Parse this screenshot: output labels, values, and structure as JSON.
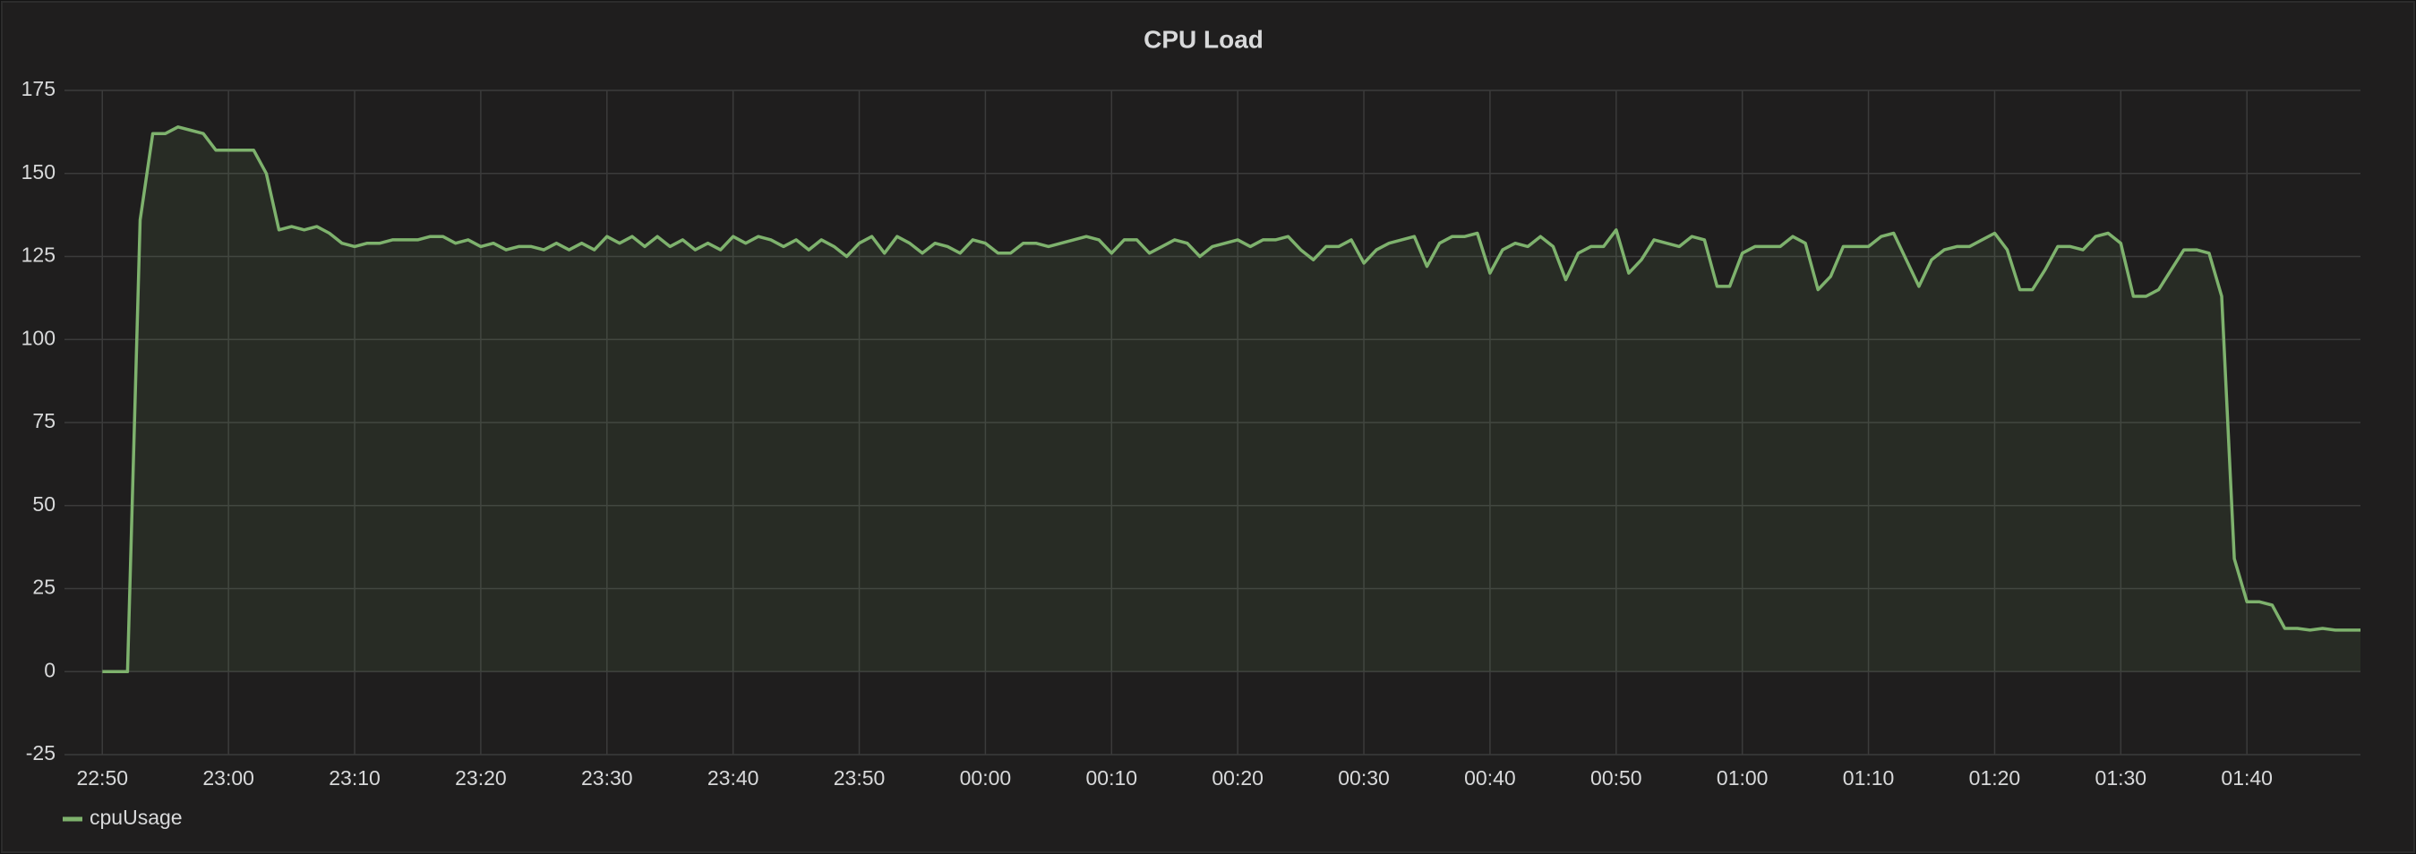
{
  "chart_data": {
    "type": "line",
    "title": "CPU Load",
    "x": [
      "22:50",
      "22:51",
      "22:52",
      "22:53",
      "22:54",
      "22:55",
      "22:56",
      "22:57",
      "22:58",
      "22:59",
      "23:00",
      "23:01",
      "23:02",
      "23:03",
      "23:04",
      "23:05",
      "23:06",
      "23:07",
      "23:08",
      "23:09",
      "23:10",
      "23:11",
      "23:12",
      "23:13",
      "23:14",
      "23:15",
      "23:16",
      "23:17",
      "23:18",
      "23:19",
      "23:20",
      "23:21",
      "23:22",
      "23:23",
      "23:24",
      "23:25",
      "23:26",
      "23:27",
      "23:28",
      "23:29",
      "23:30",
      "23:31",
      "23:32",
      "23:33",
      "23:34",
      "23:35",
      "23:36",
      "23:37",
      "23:38",
      "23:39",
      "23:40",
      "23:41",
      "23:42",
      "23:43",
      "23:44",
      "23:45",
      "23:46",
      "23:47",
      "23:48",
      "23:49",
      "23:50",
      "23:51",
      "23:52",
      "23:53",
      "23:54",
      "23:55",
      "23:56",
      "23:57",
      "23:58",
      "23:59",
      "00:00",
      "00:01",
      "00:02",
      "00:03",
      "00:04",
      "00:05",
      "00:06",
      "00:07",
      "00:08",
      "00:09",
      "00:10",
      "00:11",
      "00:12",
      "00:13",
      "00:14",
      "00:15",
      "00:16",
      "00:17",
      "00:18",
      "00:19",
      "00:20",
      "00:21",
      "00:22",
      "00:23",
      "00:24",
      "00:25",
      "00:26",
      "00:27",
      "00:28",
      "00:29",
      "00:30",
      "00:31",
      "00:32",
      "00:33",
      "00:34",
      "00:35",
      "00:36",
      "00:37",
      "00:38",
      "00:39",
      "00:40",
      "00:41",
      "00:42",
      "00:43",
      "00:44",
      "00:45",
      "00:46",
      "00:47",
      "00:48",
      "00:49",
      "00:50",
      "00:51",
      "00:52",
      "00:53",
      "00:54",
      "00:55",
      "00:56",
      "00:57",
      "00:58",
      "00:59",
      "01:00",
      "01:01",
      "01:02",
      "01:03",
      "01:04",
      "01:05",
      "01:06",
      "01:07",
      "01:08",
      "01:09",
      "01:10",
      "01:11",
      "01:12",
      "01:13",
      "01:14",
      "01:15",
      "01:16",
      "01:17",
      "01:18",
      "01:19",
      "01:20",
      "01:21",
      "01:22",
      "01:23",
      "01:24",
      "01:25",
      "01:26",
      "01:27",
      "01:28",
      "01:29",
      "01:30",
      "01:31",
      "01:32",
      "01:33",
      "01:34",
      "01:35",
      "01:36",
      "01:37",
      "01:38",
      "01:39",
      "01:40",
      "01:41",
      "01:42",
      "01:43",
      "01:44",
      "01:45",
      "01:46",
      "01:47",
      "01:48",
      "01:49"
    ],
    "series": [
      {
        "name": "cpuUsage",
        "color": "#7eb26d",
        "values": [
          0,
          0,
          0,
          136,
          162,
          162,
          164,
          163,
          162,
          157,
          157,
          157,
          157,
          150,
          133,
          134,
          133,
          134,
          132,
          129,
          128,
          129,
          129,
          130,
          130,
          130,
          131,
          131,
          129,
          130,
          128,
          129,
          127,
          128,
          128,
          127,
          129,
          127,
          129,
          127,
          131,
          129,
          131,
          128,
          131,
          128,
          130,
          127,
          129,
          127,
          131,
          129,
          131,
          130,
          128,
          130,
          127,
          130,
          128,
          125,
          129,
          131,
          126,
          131,
          129,
          126,
          129,
          128,
          126,
          130,
          129,
          126,
          126,
          129,
          129,
          128,
          129,
          130,
          131,
          130,
          126,
          130,
          130,
          126,
          128,
          130,
          129,
          125,
          128,
          129,
          130,
          128,
          130,
          130,
          131,
          127,
          124,
          128,
          128,
          130,
          123,
          127,
          129,
          130,
          131,
          122,
          129,
          131,
          131,
          132,
          120,
          127,
          129,
          128,
          131,
          128,
          118,
          126,
          128,
          128,
          133,
          120,
          124,
          130,
          129,
          128,
          131,
          130,
          116,
          116,
          126,
          128,
          128,
          128,
          131,
          129,
          115,
          119,
          128,
          128,
          128,
          131,
          132,
          124,
          116,
          124,
          127,
          128,
          128,
          130,
          132,
          127,
          115,
          115,
          121,
          128,
          128,
          127,
          131,
          132,
          129,
          113,
          113,
          115,
          121,
          127,
          127,
          126,
          113,
          34,
          21,
          21,
          20,
          13,
          13,
          12.5,
          13,
          12.5,
          12.5,
          12.5
        ]
      }
    ],
    "xlim": [
      "22:47",
      "01:49"
    ],
    "xticks": [
      "22:50",
      "23:00",
      "23:10",
      "23:20",
      "23:30",
      "23:40",
      "23:50",
      "00:00",
      "00:10",
      "00:20",
      "00:30",
      "00:40",
      "00:50",
      "01:00",
      "01:10",
      "01:20",
      "01:30",
      "01:40"
    ],
    "ylim": [
      -25,
      175
    ],
    "yticks": [
      -25,
      0,
      25,
      50,
      75,
      100,
      125,
      150,
      175
    ],
    "grid": true,
    "legend": "bottom-left"
  }
}
